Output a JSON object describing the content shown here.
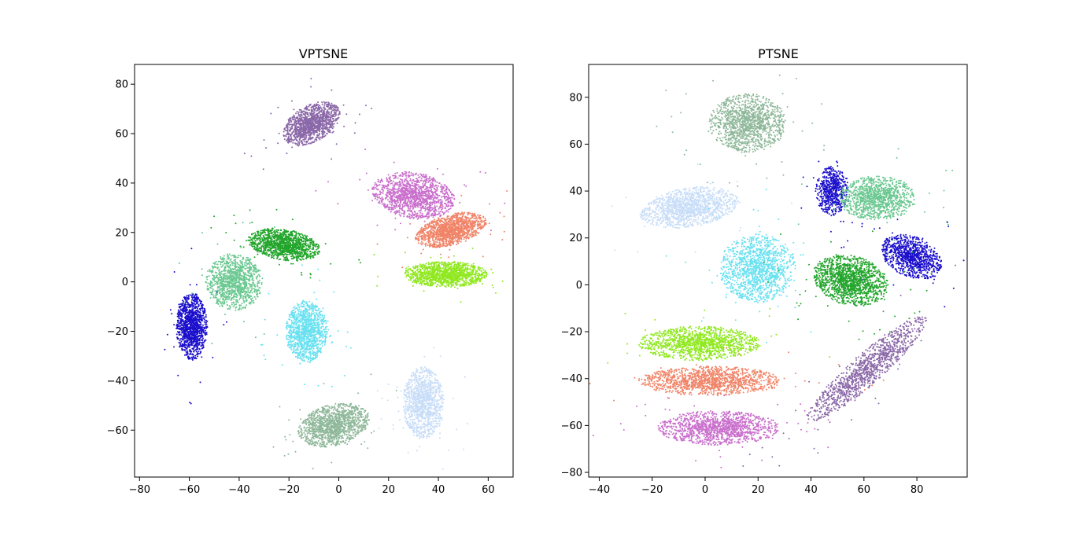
{
  "chart_data": [
    {
      "type": "scatter",
      "title": "VPTSNE",
      "xlim": [
        -82,
        70
      ],
      "ylim": [
        -79,
        88
      ],
      "xticks": [
        -80,
        -60,
        -40,
        -20,
        0,
        20,
        40,
        60
      ],
      "yticks": [
        -60,
        -40,
        -20,
        0,
        20,
        40,
        60,
        80
      ],
      "clusters": [
        {
          "color": "#8b68a8",
          "center": [
            -11,
            64
          ],
          "spread": [
            12,
            7
          ],
          "angle": 30,
          "count": 1300
        },
        {
          "color": "#c96fcc",
          "center": [
            30,
            35
          ],
          "spread": [
            16,
            9
          ],
          "angle": -10,
          "count": 1400
        },
        {
          "color": "#f08468",
          "center": [
            45,
            21
          ],
          "spread": [
            14,
            6
          ],
          "angle": 15,
          "count": 1300
        },
        {
          "color": "#90e820",
          "center": [
            43,
            3
          ],
          "spread": [
            16,
            5
          ],
          "angle": 0,
          "count": 1300
        },
        {
          "color": "#22a52b",
          "center": [
            -22,
            15
          ],
          "spread": [
            14,
            6
          ],
          "angle": -10,
          "count": 1300
        },
        {
          "color": "#6ac890",
          "center": [
            -42,
            0
          ],
          "spread": [
            11,
            11
          ],
          "angle": 0,
          "count": 1100
        },
        {
          "color": "#1b0fcc",
          "center": [
            -59,
            -18
          ],
          "spread": [
            6,
            13
          ],
          "angle": 0,
          "count": 1200
        },
        {
          "color": "#6ae1f0",
          "center": [
            -13,
            -20
          ],
          "spread": [
            8,
            12
          ],
          "angle": 0,
          "count": 1200
        },
        {
          "color": "#8fb89a",
          "center": [
            -2,
            -58
          ],
          "spread": [
            14,
            8
          ],
          "angle": 15,
          "count": 1300
        },
        {
          "color": "#c8ddf8",
          "center": [
            34,
            -49
          ],
          "spread": [
            8,
            14
          ],
          "angle": 0,
          "count": 1200
        }
      ]
    },
    {
      "type": "scatter",
      "title": "PTSNE",
      "xlim": [
        -44,
        99
      ],
      "ylim": [
        -82,
        94
      ],
      "xticks": [
        -40,
        -20,
        0,
        20,
        40,
        60,
        80
      ],
      "yticks": [
        -80,
        -60,
        -40,
        -20,
        0,
        20,
        40,
        60,
        80
      ],
      "clusters": [
        {
          "color": "#8fb89a",
          "center": [
            16,
            69
          ],
          "spread": [
            14,
            12
          ],
          "angle": 0,
          "count": 1300
        },
        {
          "color": "#c8ddf8",
          "center": [
            -6,
            33
          ],
          "spread": [
            18,
            8
          ],
          "angle": 10,
          "count": 1300
        },
        {
          "color": "#6ae1f0",
          "center": [
            20,
            7
          ],
          "spread": [
            14,
            14
          ],
          "angle": 0,
          "count": 1300
        },
        {
          "color": "#1b0fcc",
          "center": [
            48,
            40
          ],
          "spread": [
            6,
            10
          ],
          "angle": 0,
          "count": 600
        },
        {
          "color": "#6ac890",
          "center": [
            65,
            37
          ],
          "spread": [
            14,
            9
          ],
          "angle": 0,
          "count": 1100
        },
        {
          "color": "#1b0fcc",
          "center": [
            78,
            12
          ],
          "spread": [
            12,
            8
          ],
          "angle": -30,
          "count": 1000
        },
        {
          "color": "#22a52b",
          "center": [
            55,
            2
          ],
          "spread": [
            14,
            10
          ],
          "angle": -20,
          "count": 1400
        },
        {
          "color": "#90e820",
          "center": [
            -2,
            -25
          ],
          "spread": [
            22,
            7
          ],
          "angle": 0,
          "count": 1300
        },
        {
          "color": "#f08468",
          "center": [
            2,
            -41
          ],
          "spread": [
            26,
            6
          ],
          "angle": 0,
          "count": 1300
        },
        {
          "color": "#c96fcc",
          "center": [
            5,
            -61
          ],
          "spread": [
            22,
            7
          ],
          "angle": 0,
          "count": 1300
        },
        {
          "color": "#8b68a8",
          "center": [
            61,
            -36
          ],
          "spread": [
            30,
            6
          ],
          "angle": 45,
          "count": 1200
        }
      ]
    }
  ]
}
